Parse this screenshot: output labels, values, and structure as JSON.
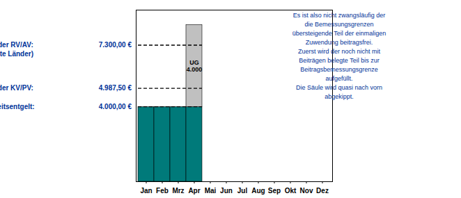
{
  "chart_data": {
    "type": "bar",
    "stacked": true,
    "grid": false,
    "tick_labels": "x",
    "categories": [
      "Jan",
      "Feb",
      "Mrz",
      "Apr",
      "Mai",
      "Jun",
      "Jul",
      "Aug",
      "Sep",
      "Okt",
      "Nov",
      "Dez"
    ],
    "series": [
      {
        "color": "#007A7A",
        "values": [
          4000,
          4000,
          4000,
          4000,
          null,
          null,
          null,
          null,
          null,
          null,
          null,
          null
        ]
      },
      {
        "color": "#C0C0C0",
        "values": [
          null,
          null,
          null,
          4400,
          null,
          null,
          null,
          null,
          null,
          null,
          null,
          null
        ]
      }
    ],
    "ylim": [
      0,
      9200
    ],
    "annotations": [
      {
        "x": "Apr",
        "text": "UG\n4.000"
      }
    ],
    "reference_lines": [
      {
        "value": 7300.0,
        "from": "Jan",
        "to": "Apr",
        "line_style": "dashed",
        "color": "#003399",
        "label": "BBG in der RV/AV:",
        "sublabel": "(alte Länder)",
        "value_label": "7.300,00 €"
      },
      {
        "value": 4987.5,
        "from": "Jan",
        "to": "Apr",
        "line_style": "dashed",
        "color": "#003399",
        "label": "BBG in der KV/PV:",
        "value_label": "4.987,50 €"
      },
      {
        "value": 4000.0,
        "from": "Jan",
        "to": "Apr",
        "line_style": "dashed",
        "color": "#003399",
        "label": "Lfd. Arbeitsentgelt:",
        "value_label": "4.000,00 €"
      }
    ],
    "note": {
      "color": "#003399",
      "text": "Es ist also nicht zwangsläufig der\ndie Bemessungsgrenzen\nübersteigende Teil der einmaligen\nZuwendung beitragsfrei.\nZuerst wird der noch nicht mit\nBeiträgen belegte Teil bis zur\nBeitragsbemessungsgrenze\naufgefüllt.\nDie Säule wird quasi nach vorn\nabgekippt."
    }
  }
}
